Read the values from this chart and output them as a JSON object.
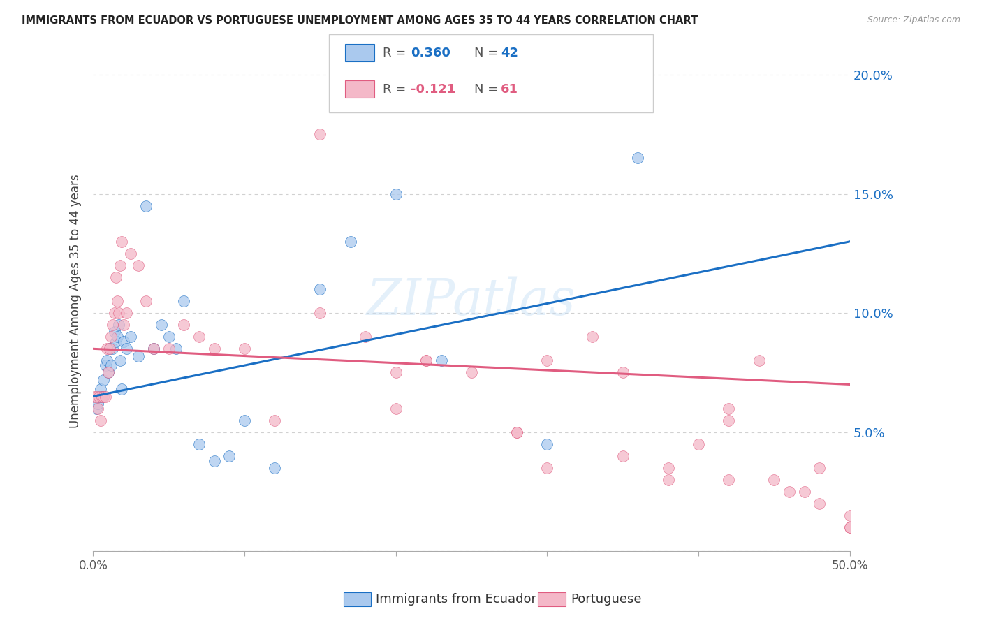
{
  "title": "IMMIGRANTS FROM ECUADOR VS PORTUGUESE UNEMPLOYMENT AMONG AGES 35 TO 44 YEARS CORRELATION CHART",
  "source": "Source: ZipAtlas.com",
  "ylabel": "Unemployment Among Ages 35 to 44 years",
  "xlim": [
    0,
    50
  ],
  "ylim": [
    0,
    21
  ],
  "yticks": [
    0,
    5,
    10,
    15,
    20
  ],
  "ytick_labels": [
    "",
    "5.0%",
    "10.0%",
    "15.0%",
    "20.0%"
  ],
  "xticks": [
    0,
    10,
    20,
    30,
    40,
    50
  ],
  "xtick_labels": [
    "0.0%",
    "",
    "",
    "",
    "",
    "50.0%"
  ],
  "blue_color": "#aac9ee",
  "pink_color": "#f4b8c8",
  "blue_line_color": "#1a6fc4",
  "pink_line_color": "#e05c80",
  "watermark": "ZIPatlas",
  "blue_scatter_x": [
    0.2,
    0.3,
    0.4,
    0.5,
    0.6,
    0.7,
    0.8,
    0.9,
    1.0,
    1.1,
    1.2,
    1.3,
    1.4,
    1.5,
    1.6,
    1.7,
    1.8,
    1.9,
    2.0,
    2.2,
    2.5,
    3.0,
    3.5,
    4.0,
    4.5,
    5.0,
    5.5,
    6.0,
    7.0,
    8.0,
    9.0,
    10.0,
    12.0,
    15.0,
    17.0,
    20.0,
    23.0,
    30.0,
    36.0
  ],
  "blue_scatter_y": [
    6.0,
    6.2,
    6.5,
    6.8,
    6.5,
    7.2,
    7.8,
    8.0,
    7.5,
    8.5,
    7.8,
    8.5,
    9.2,
    8.8,
    9.0,
    9.5,
    8.0,
    6.8,
    8.8,
    8.5,
    9.0,
    8.2,
    14.5,
    8.5,
    9.5,
    9.0,
    8.5,
    10.5,
    4.5,
    3.8,
    4.0,
    5.5,
    3.5,
    11.0,
    13.0,
    15.0,
    8.0,
    4.5,
    16.5
  ],
  "pink_scatter_x": [
    0.1,
    0.2,
    0.3,
    0.4,
    0.5,
    0.6,
    0.7,
    0.8,
    0.9,
    1.0,
    1.1,
    1.2,
    1.3,
    1.4,
    1.5,
    1.6,
    1.7,
    1.8,
    1.9,
    2.0,
    2.2,
    2.5,
    3.0,
    3.5,
    4.0,
    5.0,
    6.0,
    7.0,
    8.0,
    10.0,
    12.0,
    15.0,
    18.0,
    20.0,
    22.0,
    25.0,
    28.0,
    30.0,
    33.0,
    35.0,
    38.0,
    40.0,
    42.0,
    44.0,
    46.0,
    48.0,
    50.0,
    15.0,
    20.0,
    28.0,
    35.0,
    42.0,
    45.0,
    48.0,
    50.0,
    22.0,
    30.0,
    38.0,
    42.0,
    47.0,
    50.0
  ],
  "pink_scatter_y": [
    6.5,
    6.5,
    6.0,
    6.5,
    5.5,
    6.5,
    6.5,
    6.5,
    8.5,
    7.5,
    8.5,
    9.0,
    9.5,
    10.0,
    11.5,
    10.5,
    10.0,
    12.0,
    13.0,
    9.5,
    10.0,
    12.5,
    12.0,
    10.5,
    8.5,
    8.5,
    9.5,
    9.0,
    8.5,
    8.5,
    5.5,
    10.0,
    9.0,
    7.5,
    8.0,
    7.5,
    5.0,
    8.0,
    9.0,
    7.5,
    3.0,
    4.5,
    6.0,
    8.0,
    2.5,
    3.5,
    1.5,
    17.5,
    6.0,
    5.0,
    4.0,
    5.5,
    3.0,
    2.0,
    1.0,
    8.0,
    3.5,
    3.5,
    3.0,
    2.5,
    1.0
  ],
  "blue_trend_x0": 0,
  "blue_trend_x1": 50,
  "blue_trend_y0": 6.5,
  "blue_trend_y1": 13.0,
  "pink_trend_x0": 0,
  "pink_trend_x1": 50,
  "pink_trend_y0": 8.5,
  "pink_trend_y1": 7.0
}
